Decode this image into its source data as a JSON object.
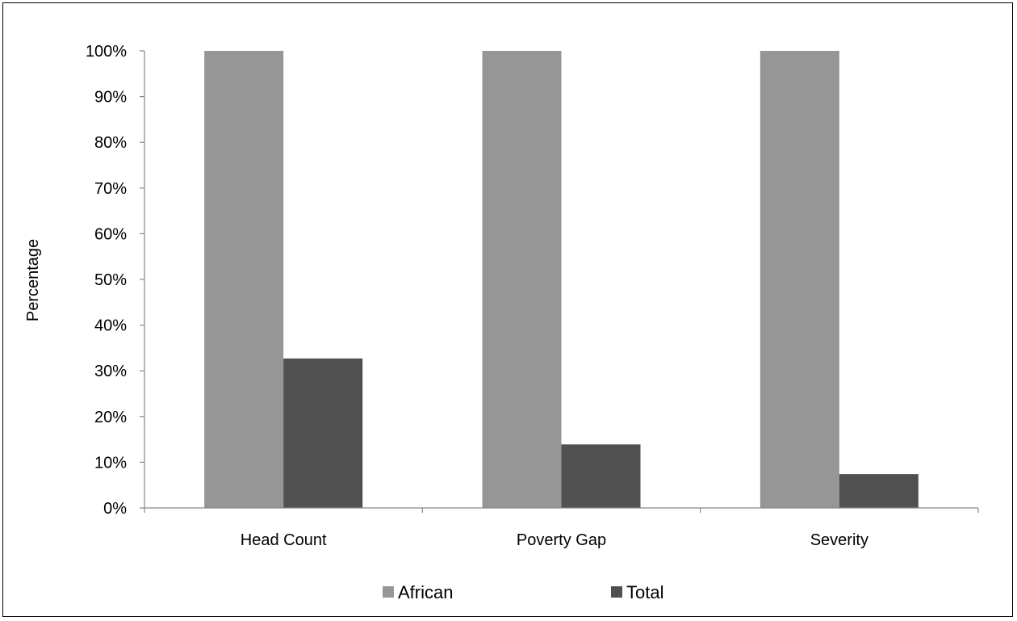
{
  "chart_data": {
    "type": "bar",
    "title": "",
    "xlabel": "",
    "ylabel": "Percentage",
    "categories": [
      "Head Count",
      "Poverty Gap",
      "Severity"
    ],
    "series": [
      {
        "name": "African",
        "values": [
          100,
          100,
          100
        ],
        "color": "#969696"
      },
      {
        "name": "Total",
        "values": [
          32.7,
          13.9,
          7.4
        ],
        "color": "#505050"
      }
    ],
    "ylim": [
      0,
      100
    ],
    "yticks": [
      "0%",
      "10%",
      "20%",
      "30%",
      "40%",
      "50%",
      "60%",
      "70%",
      "80%",
      "90%",
      "100%"
    ],
    "grid": false,
    "legend_position": "bottom"
  }
}
